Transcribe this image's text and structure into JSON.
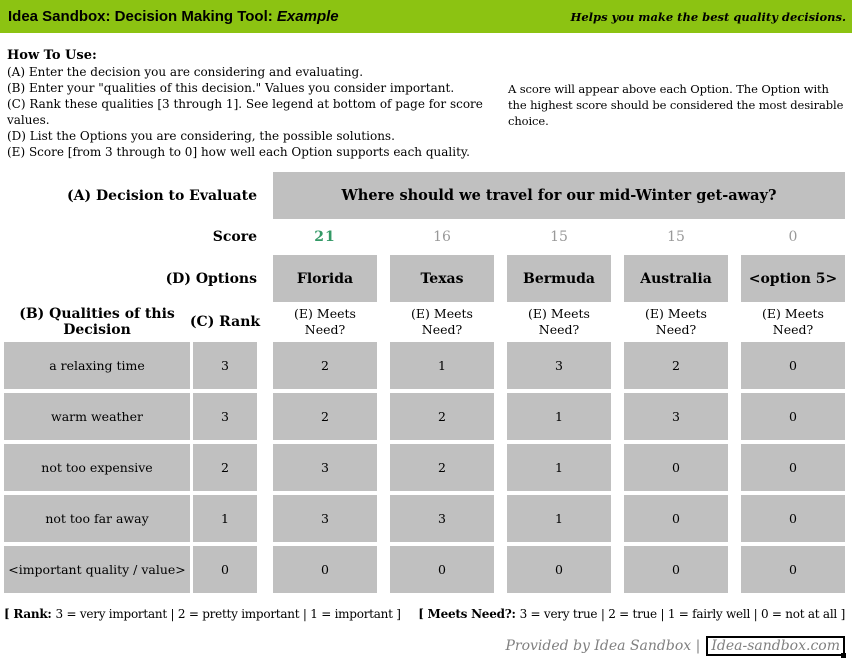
{
  "header": {
    "title_prefix": "Idea Sandbox: Decision Making Tool: ",
    "title_emphasis": "Example",
    "tagline": "Helps you make the best quality decisions.",
    "bg_color": "#8CC312"
  },
  "howto": {
    "heading": "How To Use:",
    "steps": [
      "(A) Enter the decision you are considering and evaluating.",
      "(B) Enter your \"qualities of this decision.\" Values you consider important.",
      "(C) Rank these qualities [3 through 1]. See legend at bottom of page for score values.",
      "(D) List the Options you are considering, the possible solutions.",
      "(E) Score [from 3 through to 0] how well each Option supports each quality."
    ],
    "note": "A score will appear above each Option. The Option with the highest score should be considered the most desirable choice."
  },
  "matrix": {
    "decision_label": "(A) Decision to Evaluate",
    "decision": "Where should we travel for our mid-Winter get-away?",
    "score_label": "Score",
    "options_label": "(D) Options",
    "qualities_label": "(B) Qualities of this Decision",
    "rank_label": "(C) Rank",
    "meets_need_label": "(E) Meets Need?",
    "scores": [
      "21",
      "16",
      "15",
      "15",
      "0"
    ],
    "winner_color": "#339966",
    "other_score_color": "#999999",
    "cell_bg": "#C0C0C0",
    "options": [
      "Florida",
      "Texas",
      "Bermuda",
      "Australia",
      "<option 5>"
    ],
    "rows": [
      {
        "quality": "a relaxing time",
        "rank": "3",
        "values": [
          "2",
          "1",
          "3",
          "2",
          "0"
        ]
      },
      {
        "quality": "warm weather",
        "rank": "3",
        "values": [
          "2",
          "2",
          "1",
          "3",
          "0"
        ]
      },
      {
        "quality": "not too expensive",
        "rank": "2",
        "values": [
          "3",
          "2",
          "1",
          "0",
          "0"
        ]
      },
      {
        "quality": "not too far away",
        "rank": "1",
        "values": [
          "3",
          "3",
          "1",
          "0",
          "0"
        ]
      },
      {
        "quality": "<important quality / value>",
        "rank": "0",
        "values": [
          "0",
          "0",
          "0",
          "0",
          "0"
        ]
      }
    ]
  },
  "legend": {
    "rank_label": "[ Rank: ",
    "rank_text": "3 = very important | 2 = pretty important | 1 = important ]",
    "meets_label": "[ Meets Need?: ",
    "meets_text": "3 = very true | 2 = true | 1 = fairly well | 0 = not at all ]"
  },
  "footer": {
    "provided_by": "Provided by Idea Sandbox |",
    "site": "Idea-sandbox.com"
  }
}
